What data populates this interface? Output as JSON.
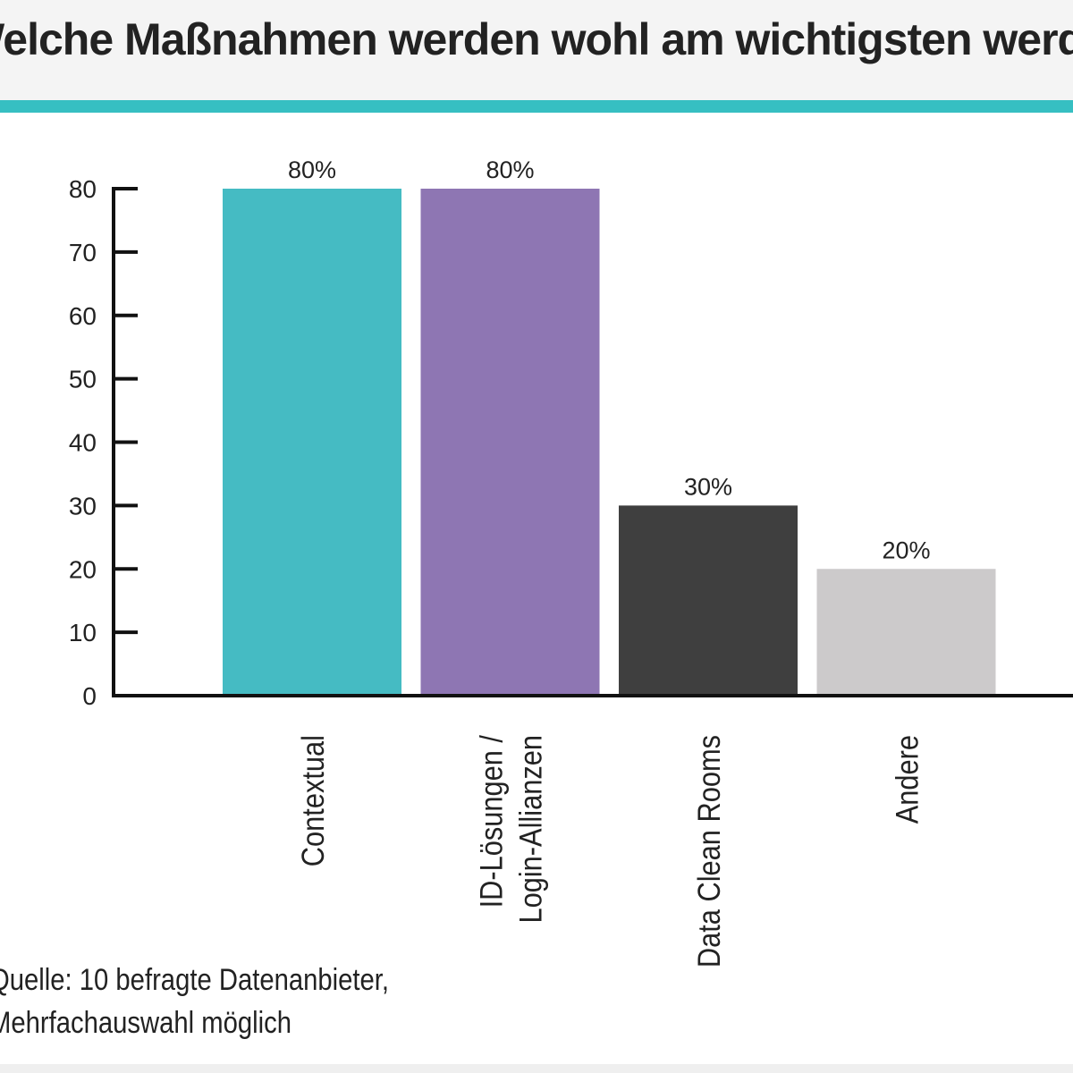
{
  "header": {
    "title": "Welche Maßnahmen werden wohl am wichtigsten werden?"
  },
  "colors": {
    "accent": "#36bfc2",
    "header_bg": "#f4f4f4"
  },
  "chart_data": {
    "type": "bar",
    "title": "Welche Maßnahmen werden wohl am wichtigsten werden?",
    "xlabel": "",
    "ylabel": "",
    "categories": [
      "Contextual",
      "ID-Lösungen / Login-Allianzen",
      "Data Clean Rooms",
      "Andere"
    ],
    "category_lines": [
      [
        "Contextual"
      ],
      [
        "ID-Lösungen /",
        "Login-Allianzen"
      ],
      [
        "Data Clean Rooms"
      ],
      [
        "Andere"
      ]
    ],
    "values": [
      80,
      80,
      30,
      20
    ],
    "data_labels": [
      "80%",
      "80%",
      "30%",
      "20%"
    ],
    "bar_colors": [
      "#45bbc3",
      "#8e76b3",
      "#3f3f3f",
      "#cccacb"
    ],
    "ylim": [
      0,
      80
    ],
    "yticks": [
      0,
      10,
      20,
      30,
      40,
      50,
      60,
      70,
      80
    ],
    "grid": false,
    "legend": "none"
  },
  "footnote": {
    "lines": [
      "Quelle: 10 befragte Datenanbieter,",
      "Mehrfachauswahl möglich"
    ]
  }
}
